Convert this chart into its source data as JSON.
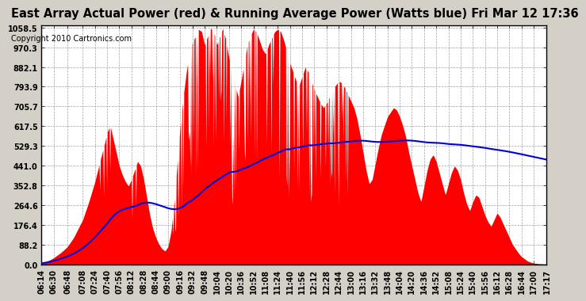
{
  "title": "East Array Actual Power (red) & Running Average Power (Watts blue) Fri Mar 12 17:36",
  "copyright": "Copyright 2010 Cartronics.com",
  "yticks": [
    0.0,
    88.2,
    176.4,
    264.6,
    352.8,
    441.0,
    529.3,
    617.5,
    705.7,
    793.9,
    882.1,
    970.3,
    1058.5
  ],
  "ymax": 1058.5,
  "ymin": 0.0,
  "bg_color": "#d4d0c8",
  "plot_bg_color": "#ffffff",
  "fill_color": "#ff0000",
  "line_color": "#0000dd",
  "grid_color": "#a0a0a0",
  "title_fontsize": 10.5,
  "copyright_fontsize": 7,
  "tick_fontsize": 7,
  "xtick_labels": [
    "06:14",
    "06:30",
    "06:48",
    "07:08",
    "07:24",
    "07:40",
    "07:56",
    "08:12",
    "08:28",
    "08:44",
    "09:00",
    "09:16",
    "09:32",
    "09:48",
    "10:04",
    "10:20",
    "10:36",
    "10:52",
    "11:08",
    "11:24",
    "11:40",
    "11:56",
    "12:12",
    "12:28",
    "12:44",
    "13:00",
    "13:16",
    "13:32",
    "13:48",
    "14:04",
    "14:20",
    "14:36",
    "14:52",
    "15:08",
    "15:24",
    "15:40",
    "15:56",
    "16:12",
    "16:28",
    "16:44",
    "17:00",
    "17:17"
  ]
}
